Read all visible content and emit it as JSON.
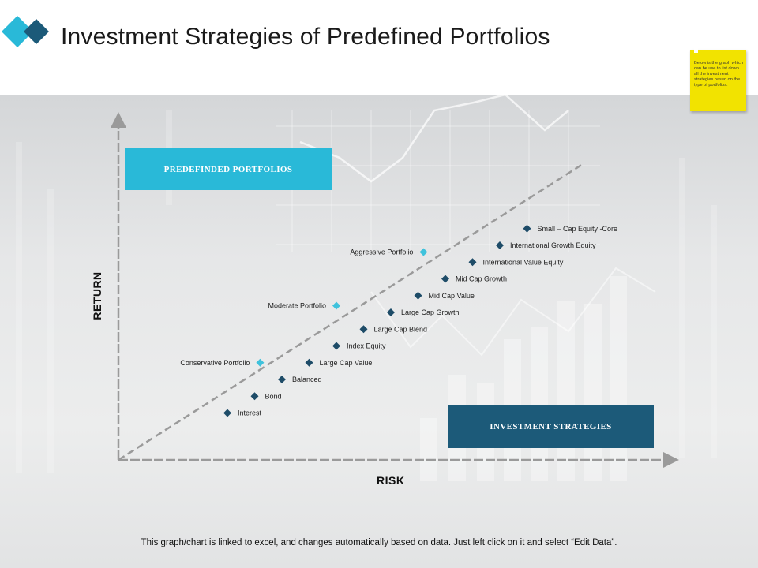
{
  "page": {
    "title": "Investment Strategies of Predefined Portfolios",
    "sticky_note": "Below is the graph which can be use to list down all the investment strategies based on the type of portfolios.",
    "footer": "This graph/chart is linked to excel, and changes automatically based on data. Just left click on it and select “Edit Data”.",
    "colors": {
      "accent_cyan": "#29b9d8",
      "accent_navy": "#1c5a79",
      "strategy_marker": "#1e4c68",
      "portfolio_marker": "#3fc2dc",
      "sticky": "#f2e300"
    },
    "logo_icon": "diamond-logo-icon"
  },
  "chart_data": {
    "type": "scatter",
    "xlabel": "RISK",
    "ylabel": "RETURN",
    "xlim": [
      0,
      100
    ],
    "ylim": [
      0,
      100
    ],
    "trend_line": {
      "from": [
        0,
        0
      ],
      "to": [
        85,
        88
      ]
    },
    "categories_boxes": {
      "portfolios": "PREDEFINDED  PORTFOLIOS",
      "strategies": "INVESTMENT STRATEGIES"
    },
    "series": [
      {
        "name": "INVESTMENT STRATEGIES",
        "points": [
          {
            "label": "Interest",
            "x": 20,
            "y": 14
          },
          {
            "label": "Bond",
            "x": 25,
            "y": 19
          },
          {
            "label": "Balanced",
            "x": 30,
            "y": 24
          },
          {
            "label": "Large Cap Value",
            "x": 35,
            "y": 29
          },
          {
            "label": "Index Equity",
            "x": 40,
            "y": 34
          },
          {
            "label": "Large Cap Blend",
            "x": 45,
            "y": 39
          },
          {
            "label": "Large Cap Growth",
            "x": 50,
            "y": 44
          },
          {
            "label": "Mid Cap Value",
            "x": 55,
            "y": 49
          },
          {
            "label": "Mid Cap Growth",
            "x": 60,
            "y": 54
          },
          {
            "label": "International Value Equity",
            "x": 65,
            "y": 59
          },
          {
            "label": "International Growth Equity",
            "x": 70,
            "y": 64
          },
          {
            "label": "Small – Cap Equity -Core",
            "x": 75,
            "y": 69
          }
        ]
      },
      {
        "name": "PREDEFINDED  PORTFOLIOS",
        "points": [
          {
            "label": "Conservative Portfolio",
            "x": 26,
            "y": 29
          },
          {
            "label": "Moderate Portfolio",
            "x": 40,
            "y": 46
          },
          {
            "label": "Aggressive Portfolio",
            "x": 56,
            "y": 62
          }
        ]
      }
    ]
  }
}
